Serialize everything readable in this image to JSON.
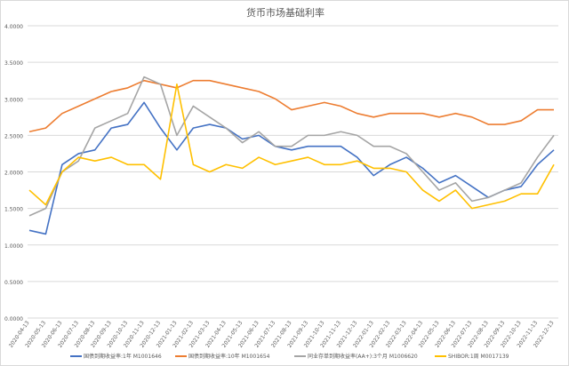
{
  "chart_data": {
    "type": "line",
    "title": "货币市场基础利率",
    "xlabel": "",
    "ylabel": "",
    "ylim": [
      0,
      4
    ],
    "yticks": [
      "0.0000",
      "0.5000",
      "1.0000",
      "1.5000",
      "2.0000",
      "2.5000",
      "3.0000",
      "3.5000",
      "4.0000"
    ],
    "grid": true,
    "legend_position": "bottom",
    "categories": [
      "2020-04-13",
      "2020-05-13",
      "2020-06-13",
      "2020-07-13",
      "2020-08-13",
      "2020-09-13",
      "2020-10-13",
      "2020-11-13",
      "2020-12-13",
      "2021-01-13",
      "2021-02-13",
      "2021-03-13",
      "2021-04-13",
      "2021-05-13",
      "2021-06-13",
      "2021-07-13",
      "2021-08-13",
      "2021-09-13",
      "2021-10-13",
      "2021-11-13",
      "2021-12-13",
      "2022-01-13",
      "2022-02-13",
      "2022-03-13",
      "2022-04-13",
      "2022-05-13",
      "2022-06-13",
      "2022-07-13",
      "2022-08-13",
      "2022-09-13",
      "2022-10-13",
      "2022-11-13",
      "2022-12-13"
    ],
    "series": [
      {
        "name": "国债到期收益率:1年 M1001646",
        "color": "#4472c4",
        "values": [
          1.2,
          1.15,
          2.1,
          2.25,
          2.3,
          2.6,
          2.65,
          2.95,
          2.6,
          2.3,
          2.6,
          2.65,
          2.6,
          2.45,
          2.5,
          2.35,
          2.3,
          2.35,
          2.35,
          2.35,
          2.2,
          1.95,
          2.1,
          2.2,
          2.05,
          1.85,
          1.95,
          1.8,
          1.65,
          1.75,
          1.8,
          2.1,
          2.3
        ]
      },
      {
        "name": "国债到期收益率:10年 M1001654",
        "color": "#ed7d31",
        "values": [
          2.55,
          2.6,
          2.8,
          2.9,
          3.0,
          3.1,
          3.15,
          3.25,
          3.2,
          3.15,
          3.25,
          3.25,
          3.2,
          3.15,
          3.1,
          3.0,
          2.85,
          2.9,
          2.95,
          2.9,
          2.8,
          2.75,
          2.8,
          2.8,
          2.8,
          2.75,
          2.8,
          2.75,
          2.65,
          2.65,
          2.7,
          2.85,
          2.85
        ]
      },
      {
        "name": "同业存单到期收益率(AA+):3个月 M1006620",
        "color": "#a5a5a5",
        "values": [
          1.4,
          1.5,
          2.0,
          2.15,
          2.6,
          2.7,
          2.8,
          3.3,
          3.2,
          2.5,
          2.9,
          2.75,
          2.6,
          2.4,
          2.55,
          2.35,
          2.35,
          2.5,
          2.5,
          2.55,
          2.5,
          2.35,
          2.35,
          2.25,
          2.0,
          1.75,
          1.85,
          1.6,
          1.65,
          1.75,
          1.85,
          2.2,
          2.5
        ]
      },
      {
        "name": "SHIBOR:1周 M0017139",
        "color": "#ffc000",
        "values": [
          1.75,
          1.55,
          2.0,
          2.2,
          2.15,
          2.2,
          2.1,
          2.1,
          1.9,
          3.2,
          2.1,
          2.0,
          2.1,
          2.05,
          2.2,
          2.1,
          2.15,
          2.2,
          2.1,
          2.1,
          2.15,
          2.05,
          2.05,
          2.0,
          1.75,
          1.6,
          1.75,
          1.5,
          1.55,
          1.6,
          1.7,
          1.7,
          2.1
        ]
      }
    ]
  }
}
